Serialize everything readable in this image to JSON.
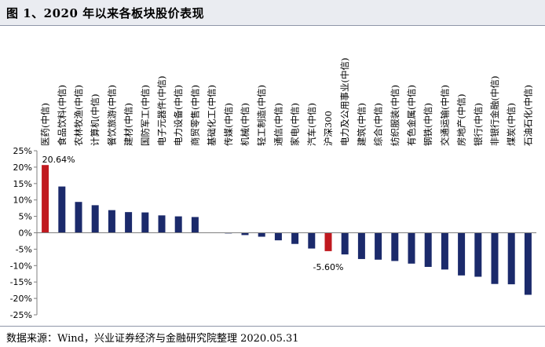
{
  "header": {
    "title": "图 1、2020 年以来各板块股价表现"
  },
  "footer": {
    "source": "数据来源：Wind，兴业证券经济与金融研究院整理 2020.05.31"
  },
  "colors": {
    "bar": "#1b2a6b",
    "highlight": "#c0191f",
    "axis": "#7f7f7f"
  },
  "chart_data": {
    "type": "bar",
    "title": "",
    "xlabel": "",
    "ylabel": "",
    "ylim": [
      -25,
      25
    ],
    "yticks": [
      "-25%",
      "-20%",
      "-15%",
      "-10%",
      "-5%",
      "0%",
      "5%",
      "10%",
      "15%",
      "20%",
      "25%"
    ],
    "grid": false,
    "legend": "none",
    "categories": [
      "医药(中信)",
      "食品饮料(中信)",
      "农林牧渔(中信)",
      "计算机(中信)",
      "餐饮旅游(中信)",
      "建材(中信)",
      "国防军工(中信)",
      "电子元器件(中信)",
      "电力设备(中信)",
      "商贸零售(中信)",
      "基础化工(中信)",
      "传媒(中信)",
      "机械(中信)",
      "轻工制造(中信)",
      "通信(中信)",
      "家电(中信)",
      "汽车(中信)",
      "沪深300",
      "电力及公用事业(中信)",
      "建筑(中信)",
      "综合(中信)",
      "纺织服装(中信)",
      "有色金属(中信)",
      "钢铁(中信)",
      "交通运输(中信)",
      "房地产(中信)",
      "银行(中信)",
      "非银行金融(中信)",
      "煤炭(中信)",
      "石油石化(中信)"
    ],
    "values": [
      20.64,
      14.1,
      9.4,
      8.4,
      6.9,
      6.3,
      6.2,
      5.3,
      5.0,
      4.8,
      0.1,
      -0.2,
      -0.7,
      -1.2,
      -2.3,
      -3.4,
      -4.8,
      -5.6,
      -6.6,
      -8.0,
      -8.2,
      -8.6,
      -9.4,
      -10.4,
      -11.2,
      -13.0,
      -13.4,
      -15.6,
      -15.7,
      -18.9
    ],
    "highlight_indices": [
      0,
      17
    ],
    "data_labels": [
      {
        "index": 0,
        "text": "20.64%"
      },
      {
        "index": 17,
        "text": "-5.60%"
      }
    ]
  }
}
